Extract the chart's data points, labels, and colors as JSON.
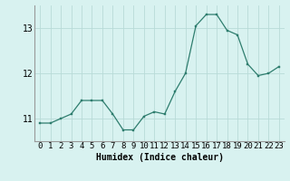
{
  "x": [
    0,
    1,
    2,
    3,
    4,
    5,
    6,
    7,
    8,
    9,
    10,
    11,
    12,
    13,
    14,
    15,
    16,
    17,
    18,
    19,
    20,
    21,
    22,
    23
  ],
  "y": [
    10.9,
    10.9,
    11.0,
    11.1,
    11.4,
    11.4,
    11.4,
    11.1,
    10.75,
    10.75,
    11.05,
    11.15,
    11.1,
    11.6,
    12.0,
    13.05,
    13.3,
    13.3,
    12.95,
    12.85,
    12.2,
    11.95,
    12.0,
    12.15
  ],
  "xlabel": "Humidex (Indice chaleur)",
  "xlim": [
    -0.5,
    23.5
  ],
  "ylim": [
    10.5,
    13.5
  ],
  "yticks": [
    11,
    12,
    13
  ],
  "line_color": "#2e7d6e",
  "marker_color": "#2e7d6e",
  "bg_color": "#d8f2f0",
  "grid_color": "#b8dbd8",
  "xlabel_fontsize": 7,
  "tick_fontsize": 6.5
}
